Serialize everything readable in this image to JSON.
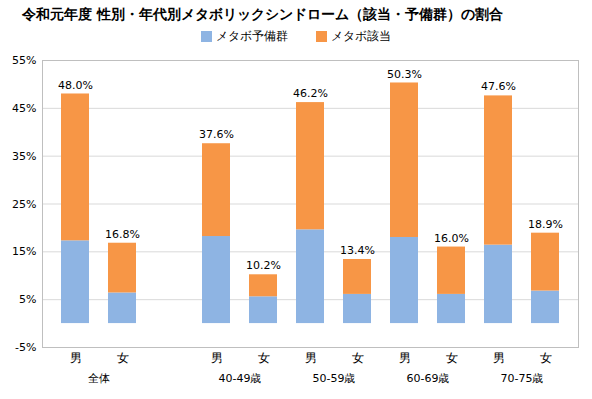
{
  "chart_data": {
    "type": "bar",
    "title": "令和元年度 性別・年代別メタボリックシンドローム（該当・予備群）の割合",
    "stacked": true,
    "legend": "top",
    "grid": true,
    "categories": [
      "男",
      "女",
      "男",
      "女",
      "男",
      "女",
      "男",
      "女",
      "男",
      "女"
    ],
    "groups": [
      "全体",
      "40-49歳",
      "50-59歳",
      "60-69歳",
      "70-75歳"
    ],
    "series": [
      {
        "name": "メタボ予備群",
        "color": "#8EB4E3",
        "values": [
          17.3,
          6.4,
          18.2,
          5.6,
          19.6,
          6.1,
          18.0,
          6.1,
          16.4,
          6.8
        ]
      },
      {
        "name": "メタボ該当",
        "color": "#F79646",
        "values": [
          30.7,
          10.4,
          19.4,
          4.6,
          26.6,
          7.3,
          32.3,
          9.9,
          31.2,
          12.1
        ]
      }
    ],
    "totals": [
      48.0,
      16.8,
      37.6,
      10.2,
      46.2,
      13.4,
      50.3,
      16.0,
      47.6,
      18.9
    ],
    "total_labels": [
      "48.0%",
      "16.8%",
      "37.6%",
      "10.2%",
      "46.2%",
      "13.4%",
      "50.3%",
      "16.0%",
      "47.6%",
      "18.9%"
    ],
    "ylim": [
      -5,
      55
    ],
    "yticks": [
      {
        "value": -5,
        "label": "-5%"
      },
      {
        "value": 5,
        "label": "5%"
      },
      {
        "value": 15,
        "label": "15%"
      },
      {
        "value": 25,
        "label": "25%"
      },
      {
        "value": 35,
        "label": "35%"
      },
      {
        "value": 45,
        "label": "45%"
      },
      {
        "value": 55,
        "label": "55%"
      }
    ]
  }
}
